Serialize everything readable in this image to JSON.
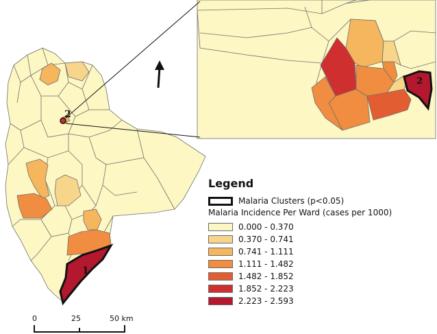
{
  "legend": {
    "title": "Legend",
    "clusters_label": "Malaria Clusters (p<0.05)",
    "incidence_label": "Malaria Incidence Per Ward (cases per 1000)",
    "classes": [
      {
        "label": "0.000 - 0.370",
        "color": "#fdf7c3"
      },
      {
        "label": "0.370 - 0.741",
        "color": "#f7d58a"
      },
      {
        "label": "0.741 - 1.111",
        "color": "#f5b65d"
      },
      {
        "label": "1.111 - 1.482",
        "color": "#f08d40"
      },
      {
        "label": "1.482 - 1.852",
        "color": "#e35d33"
      },
      {
        "label": "1.852 - 2.223",
        "color": "#d02f30"
      },
      {
        "label": "2.223 - 2.593",
        "color": "#b3182f"
      }
    ]
  },
  "map": {
    "cluster_labels": [
      "1",
      "2"
    ],
    "inset_cluster_label": "2",
    "north_arrow": "north-arrow-icon"
  },
  "scale_bar": {
    "labels": [
      "0",
      "25",
      "50 km"
    ]
  }
}
